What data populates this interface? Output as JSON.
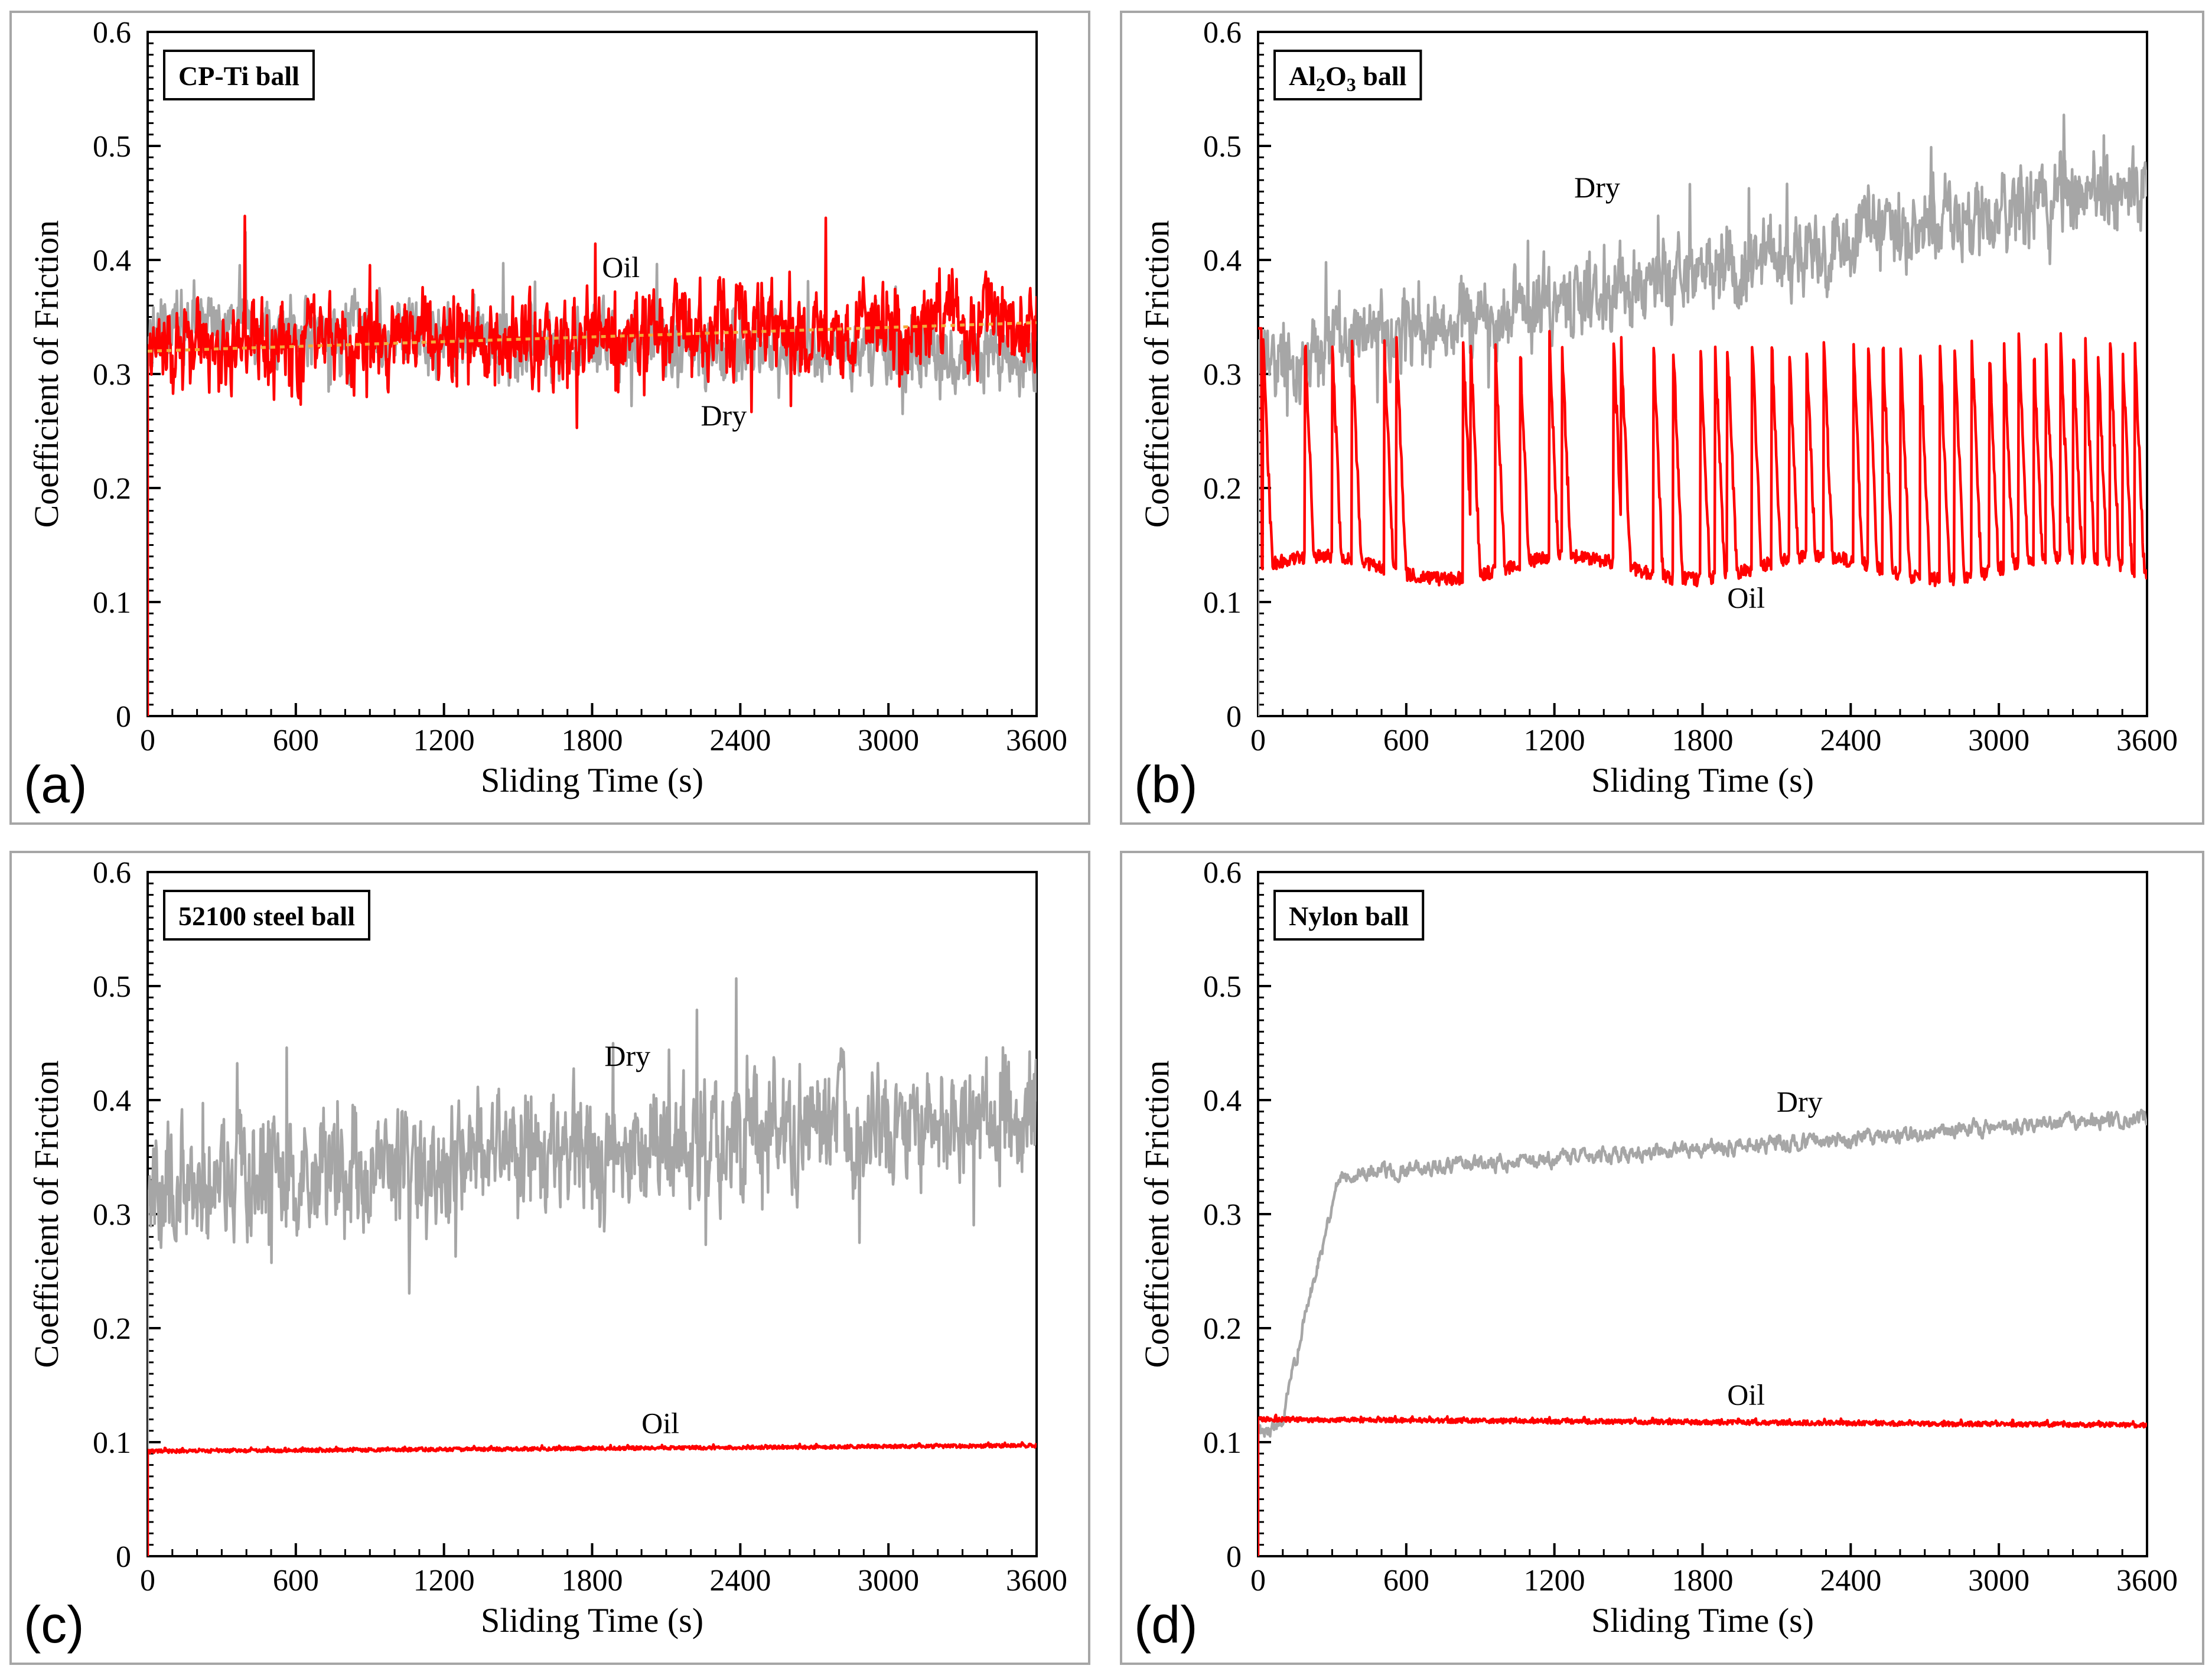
{
  "figure": {
    "common": {
      "xlabel": "Sliding Time (s)",
      "ylabel": "Coefficient of Friction",
      "xlim": [
        0,
        3600
      ],
      "ylim": [
        0,
        0.6
      ],
      "xticks": [
        "0",
        "600",
        "1200",
        "1800",
        "2400",
        "3000",
        "3600"
      ],
      "yticks": [
        "0",
        "0.1",
        "0.2",
        "0.3",
        "0.4",
        "0.5",
        "0.6"
      ],
      "colors": {
        "dry": "#a6a6a6",
        "oil": "#ff0000",
        "trend": "#f4a93a",
        "frame": "#000000"
      }
    }
  },
  "chart_data": [
    {
      "id": "a",
      "type": "line",
      "panel_label": "(a)",
      "ball_label": "CP-Ti ball",
      "title": "CP-Ti ball",
      "xlabel": "Sliding Time (s)",
      "ylabel": "Coefficient of Friction",
      "xlim": [
        0,
        3600
      ],
      "ylim": [
        0,
        0.6
      ],
      "grid": false,
      "series": [
        {
          "name": "Dry",
          "label": "Dry",
          "color": "#a6a6a6",
          "mean": 0.315,
          "start": 0.34,
          "end": 0.315,
          "noise": 0.018,
          "style": "noisy"
        },
        {
          "name": "Oil",
          "label": "Oil",
          "color": "#ff0000",
          "mean": 0.33,
          "start": 0.325,
          "end": 0.345,
          "noise": 0.022,
          "style": "noisy"
        }
      ],
      "trendline": {
        "name": "Oil trend",
        "color": "#f4a93a",
        "x": [
          0,
          3600
        ],
        "y": [
          0.32,
          0.345
        ]
      },
      "annotations": [
        {
          "text": "Oil",
          "x": 1840,
          "y": 0.385
        },
        {
          "text": "Dry",
          "x": 2240,
          "y": 0.255
        }
      ]
    },
    {
      "id": "b",
      "type": "line",
      "panel_label": "(b)",
      "ball_label": "Al2O3 ball",
      "title": "Al2O3 ball",
      "xlabel": "Sliding Time (s)",
      "ylabel": "Coefficient of Friction",
      "xlim": [
        0,
        3600
      ],
      "ylim": [
        0,
        0.6
      ],
      "grid": false,
      "series": [
        {
          "name": "Dry",
          "label": "Dry",
          "color": "#a6a6a6",
          "start": 0.31,
          "end": 0.47,
          "noise": 0.02,
          "style": "noisy-rising"
        },
        {
          "name": "Oil",
          "label": "Oil",
          "color": "#ff0000",
          "base": 0.13,
          "spike_peak": 0.34,
          "style": "spiky",
          "spike_x": [
            20,
            190,
            300,
            380,
            510,
            560,
            830,
            860,
            960,
            1060,
            1180,
            1230,
            1440,
            1470,
            1600,
            1680,
            1790,
            1850,
            1900,
            2000,
            2080,
            2150,
            2220,
            2290,
            2410,
            2470,
            2530,
            2600,
            2680,
            2760,
            2820,
            2890,
            2960,
            3020,
            3080,
            3140,
            3190,
            3250,
            3300,
            3350,
            3400,
            3450,
            3500,
            3550
          ]
        }
      ],
      "annotations": [
        {
          "text": "Dry",
          "x": 1280,
          "y": 0.455
        },
        {
          "text": "Oil",
          "x": 1900,
          "y": 0.095
        }
      ]
    },
    {
      "id": "c",
      "type": "line",
      "panel_label": "(c)",
      "ball_label": "52100 steel ball",
      "title": "52100 steel ball",
      "xlabel": "Sliding Time (s)",
      "ylabel": "Coefficient of Friction",
      "xlim": [
        0,
        3600
      ],
      "ylim": [
        0,
        0.6
      ],
      "grid": false,
      "series": [
        {
          "name": "Dry",
          "label": "Dry",
          "color": "#a6a6a6",
          "start": 0.325,
          "end": 0.39,
          "noise": 0.03,
          "style": "noisy-rising"
        },
        {
          "name": "Oil",
          "label": "Oil",
          "color": "#ff0000",
          "start": 0.092,
          "end": 0.097,
          "noise": 0.0015,
          "style": "smooth"
        }
      ],
      "annotations": [
        {
          "text": "Dry",
          "x": 1850,
          "y": 0.43
        },
        {
          "text": "Oil",
          "x": 2000,
          "y": 0.108
        }
      ]
    },
    {
      "id": "d",
      "type": "line",
      "panel_label": "(d)",
      "ball_label": "Nylon ball",
      "title": "Nylon ball",
      "xlabel": "Sliding Time (s)",
      "ylabel": "Coefficient of Friction",
      "xlim": [
        0,
        3600
      ],
      "ylim": [
        0,
        0.6
      ],
      "grid": false,
      "series": [
        {
          "name": "Dry",
          "label": "Dry",
          "color": "#a6a6a6",
          "start": 0.11,
          "plateau": 0.335,
          "end": 0.385,
          "rise_end": 330,
          "noise": 0.007,
          "style": "rise-plateau"
        },
        {
          "name": "Oil",
          "label": "Oil",
          "color": "#ff0000",
          "start": 0.12,
          "end": 0.115,
          "noise": 0.002,
          "style": "smooth"
        }
      ],
      "annotations": [
        {
          "text": "Dry",
          "x": 2100,
          "y": 0.39
        },
        {
          "text": "Oil",
          "x": 1900,
          "y": 0.133
        }
      ]
    }
  ]
}
